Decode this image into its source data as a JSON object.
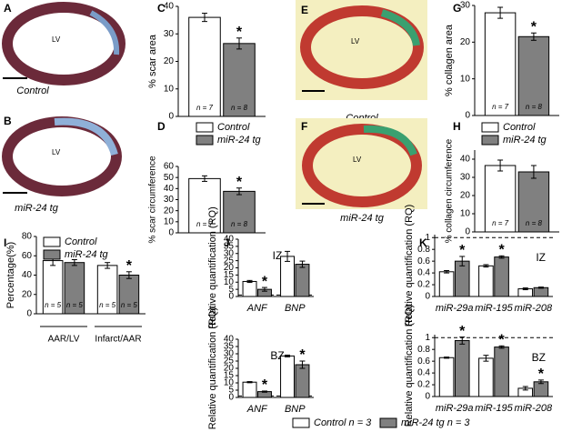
{
  "images": [
    {
      "panel": "A",
      "label": "LV",
      "caption": "Control"
    },
    {
      "panel": "B",
      "label": "LV",
      "caption": "miR-24 tg"
    },
    {
      "panel": "E",
      "label": "LV",
      "caption": "Control"
    },
    {
      "panel": "F",
      "label": "LV",
      "caption": "miR-24 tg"
    }
  ],
  "chart_data": [
    {
      "type": "bar",
      "panel": "C",
      "ylabel": "% scar area",
      "ylim": [
        0,
        40
      ],
      "yticks": [
        0,
        10,
        20,
        30,
        40
      ],
      "series": [
        {
          "name": "Control",
          "color": "#ffffff",
          "values": [
            36
          ],
          "errors": [
            1.5
          ],
          "n_labels": [
            "n = 7"
          ]
        },
        {
          "name": "miR-24 tg",
          "color": "#808080",
          "values": [
            26.5
          ],
          "errors": [
            2
          ],
          "n_labels": [
            "n = 8"
          ],
          "stars": [
            "*"
          ]
        }
      ]
    },
    {
      "type": "bar",
      "panel": "D",
      "ylabel": "% scar circumference",
      "ylim": [
        0,
        60
      ],
      "yticks": [
        0,
        10,
        20,
        30,
        40,
        50,
        60
      ],
      "series": [
        {
          "color": "#ffffff",
          "values": [
            49
          ],
          "errors": [
            2.5
          ],
          "n_labels": [
            "n = 7"
          ]
        },
        {
          "color": "#808080",
          "values": [
            37.5
          ],
          "errors": [
            3
          ],
          "n_labels": [
            "n = 8"
          ],
          "stars": [
            "*"
          ]
        }
      ]
    },
    {
      "type": "bar",
      "panel": "G",
      "ylabel": "% collagen area",
      "ylim": [
        0,
        30
      ],
      "yticks": [
        0,
        10,
        20,
        30
      ],
      "series": [
        {
          "name": "Control",
          "color": "#ffffff",
          "values": [
            28
          ],
          "errors": [
            1.5
          ],
          "n_labels": [
            "n = 7"
          ]
        },
        {
          "name": "miR-24 tg",
          "color": "#808080",
          "values": [
            21.5
          ],
          "errors": [
            1
          ],
          "n_labels": [
            "n = 8"
          ],
          "stars": [
            "*"
          ]
        }
      ]
    },
    {
      "type": "bar",
      "panel": "H",
      "ylabel": "% collagen circumference",
      "ylim": [
        0,
        45
      ],
      "yticks": [
        0,
        10,
        20,
        30,
        40
      ],
      "series": [
        {
          "color": "#ffffff",
          "values": [
            36.5
          ],
          "errors": [
            3
          ],
          "n_labels": [
            "n = 7"
          ]
        },
        {
          "color": "#808080",
          "values": [
            33
          ],
          "errors": [
            3.5
          ],
          "n_labels": [
            "n = 8"
          ]
        }
      ]
    },
    {
      "type": "bar",
      "panel": "I",
      "ylabel": "Percentage(%)",
      "categories": [
        "AAR/LV",
        "Infarct/AAR"
      ],
      "ylim": [
        0,
        80
      ],
      "yticks": [
        0,
        20,
        40,
        60,
        80
      ],
      "series": [
        {
          "name": "Control",
          "color": "#ffffff",
          "values": [
            55,
            50
          ],
          "errors": [
            5,
            3
          ],
          "n_labels": [
            "n = 5",
            "n = 5"
          ]
        },
        {
          "name": "miR-24 tg",
          "color": "#808080",
          "values": [
            53,
            40
          ],
          "errors": [
            3,
            3.5
          ],
          "n_labels": [
            "n = 5",
            "n = 5"
          ],
          "stars": [
            null,
            "*"
          ]
        }
      ]
    },
    {
      "type": "bar",
      "panel": "J",
      "subtitle": "IZ",
      "ylabel": "Relative quantification (RQ)",
      "categories": [
        "ANF",
        "BNP"
      ],
      "ylim": [
        0,
        40
      ],
      "yticks": [
        0,
        5,
        10,
        15,
        20,
        25,
        30,
        35,
        40
      ],
      "refline": 1,
      "series": [
        {
          "color": "#ffffff",
          "values": [
            10.5,
            28
          ],
          "errors": [
            0.7,
            3.5
          ]
        },
        {
          "color": "#808080",
          "values": [
            5,
            22.5
          ],
          "errors": [
            1.3,
            2.2
          ],
          "stars": [
            "*",
            null
          ]
        }
      ]
    },
    {
      "type": "bar",
      "subtitle": "BZ",
      "ylabel": "Relative quantification (RQ)",
      "categories": [
        "ANF",
        "BNP"
      ],
      "ylim": [
        0,
        40
      ],
      "yticks": [
        0,
        5,
        10,
        15,
        20,
        25,
        30,
        35,
        40
      ],
      "refline": 1,
      "series": [
        {
          "name": "Control n = 3",
          "color": "#ffffff",
          "values": [
            10.5,
            28.5
          ],
          "errors": [
            0.4,
            0.6
          ]
        },
        {
          "name": "miR-24 tg n = 3",
          "color": "#808080",
          "values": [
            4,
            22.5
          ],
          "errors": [
            0.4,
            2.5
          ],
          "stars": [
            "*",
            "*"
          ]
        }
      ]
    },
    {
      "type": "bar",
      "panel": "K",
      "subtitle": "IZ",
      "ylabel": "Relative quantification (RQ)",
      "categories": [
        "miR-29a",
        "miR-195",
        "miR-208"
      ],
      "ylim": [
        0,
        1.05
      ],
      "yticks": [
        0,
        0.2,
        0.4,
        0.6,
        0.8,
        1
      ],
      "refline": 1,
      "series": [
        {
          "color": "#ffffff",
          "values": [
            0.42,
            0.52,
            0.13
          ],
          "errors": [
            0.02,
            0.02,
            0.015
          ]
        },
        {
          "color": "#808080",
          "values": [
            0.6,
            0.67,
            0.15
          ],
          "errors": [
            0.08,
            0.02,
            0.01
          ],
          "stars": [
            "*",
            "*",
            null
          ]
        }
      ]
    },
    {
      "type": "bar",
      "subtitle": "BZ",
      "ylabel": "Relative quantification (RQ)",
      "categories": [
        "miR-29a",
        "miR-195",
        "miR-208"
      ],
      "ylim": [
        0,
        1.05
      ],
      "yticks": [
        0,
        0.2,
        0.4,
        0.6,
        0.8,
        1
      ],
      "refline": 1,
      "series": [
        {
          "color": "#ffffff",
          "values": [
            0.66,
            0.65,
            0.14
          ],
          "errors": [
            0.01,
            0.05,
            0.03
          ]
        },
        {
          "color": "#808080",
          "values": [
            0.95,
            0.84,
            0.25
          ],
          "errors": [
            0.06,
            0.02,
            0.03
          ],
          "stars": [
            "*",
            "*",
            "*"
          ]
        }
      ]
    }
  ]
}
